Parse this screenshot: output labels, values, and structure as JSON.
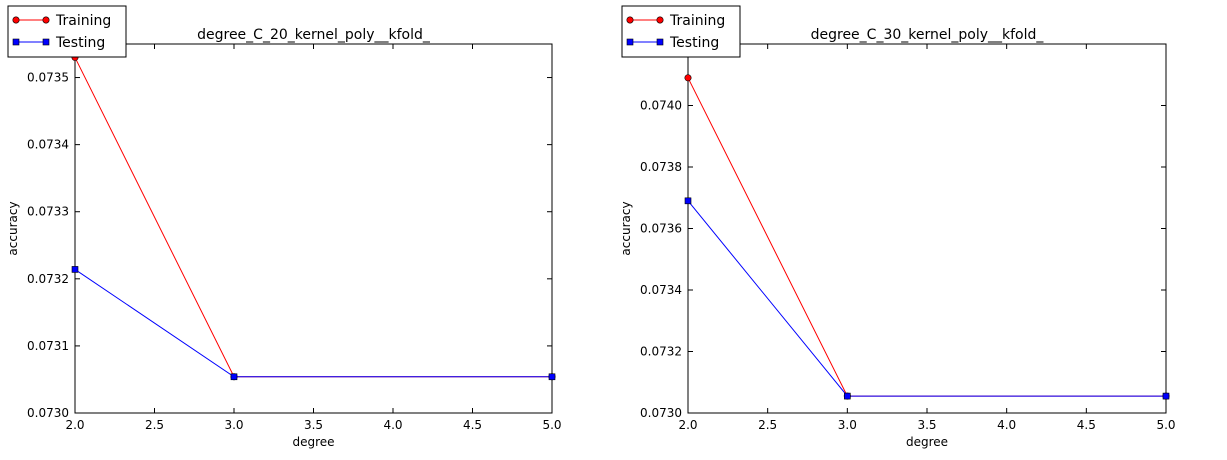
{
  "chart_data": [
    {
      "type": "line",
      "title": "degree_C_20_kernel_poly__kfold_",
      "xlabel": "degree",
      "ylabel": "accuracy",
      "xlim": [
        2.0,
        5.0
      ],
      "ylim": [
        0.073,
        0.07355
      ],
      "xticks": [
        2.0,
        2.5,
        3.0,
        3.5,
        4.0,
        4.5,
        5.0
      ],
      "xtick_labels": [
        "2.0",
        "2.5",
        "3.0",
        "3.5",
        "4.0",
        "4.5",
        "5.0"
      ],
      "yticks": [
        0.073,
        0.0731,
        0.0732,
        0.0733,
        0.0734,
        0.0735
      ],
      "ytick_labels": [
        "0.0730",
        "0.0731",
        "0.0732",
        "0.0733",
        "0.0734",
        "0.0735"
      ],
      "grid": false,
      "legend_position": "top-left",
      "series": [
        {
          "name": "Training",
          "color": "#ff0000",
          "marker": "circle",
          "x": [
            2.0,
            3.0,
            5.0
          ],
          "y": [
            0.07353,
            0.073054,
            0.073054
          ]
        },
        {
          "name": "Testing",
          "color": "#0000ff",
          "marker": "square",
          "x": [
            2.0,
            3.0,
            5.0
          ],
          "y": [
            0.073214,
            0.073054,
            0.073054
          ]
        }
      ]
    },
    {
      "type": "line",
      "title": "degree_C_30_kernel_poly__kfold_",
      "xlabel": "degree",
      "ylabel": "accuracy",
      "xlim": [
        2.0,
        5.0
      ],
      "ylim": [
        0.073,
        0.0742
      ],
      "xticks": [
        2.0,
        2.5,
        3.0,
        3.5,
        4.0,
        4.5,
        5.0
      ],
      "xtick_labels": [
        "2.0",
        "2.5",
        "3.0",
        "3.5",
        "4.0",
        "4.5",
        "5.0"
      ],
      "yticks": [
        0.073,
        0.0732,
        0.0734,
        0.0736,
        0.0738,
        0.074
      ],
      "ytick_labels": [
        "0.0730",
        "0.0732",
        "0.0734",
        "0.0736",
        "0.0738",
        "0.0740"
      ],
      "grid": false,
      "legend_position": "top-left",
      "series": [
        {
          "name": "Training",
          "color": "#ff0000",
          "marker": "circle",
          "x": [
            2.0,
            3.0,
            5.0
          ],
          "y": [
            0.07409,
            0.073055,
            0.073055
          ]
        },
        {
          "name": "Testing",
          "color": "#0000ff",
          "marker": "square",
          "x": [
            2.0,
            3.0,
            5.0
          ],
          "y": [
            0.07369,
            0.073055,
            0.073055
          ]
        }
      ]
    }
  ]
}
